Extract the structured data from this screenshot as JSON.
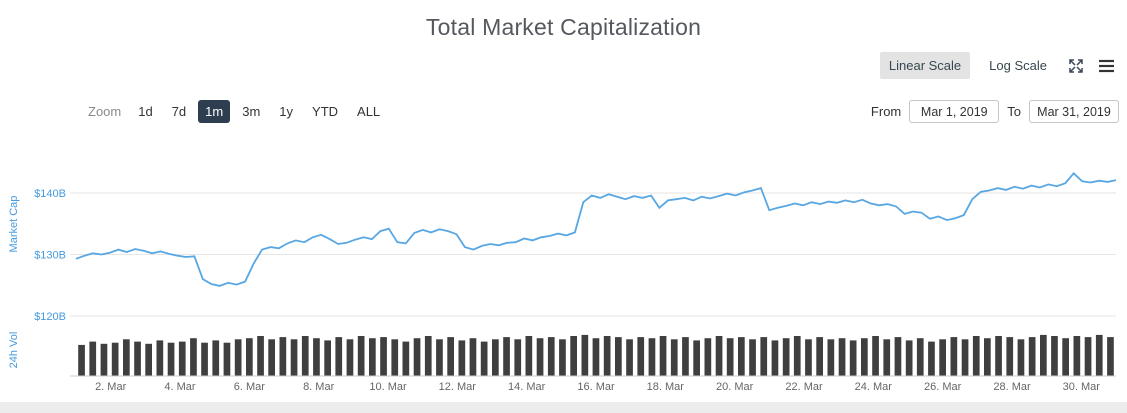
{
  "title": "Total Market Capitalization",
  "scale_toggle": {
    "linear": "Linear Scale",
    "log": "Log Scale",
    "selected": "linear"
  },
  "icons": {
    "fullscreen": "expand-arrows",
    "menu": "hamburger-menu"
  },
  "zoom": {
    "label": "Zoom",
    "ranges": [
      {
        "label": "1d",
        "selected": false
      },
      {
        "label": "7d",
        "selected": false
      },
      {
        "label": "1m",
        "selected": true
      },
      {
        "label": "3m",
        "selected": false
      },
      {
        "label": "1y",
        "selected": false
      },
      {
        "label": "YTD",
        "selected": false
      },
      {
        "label": "ALL",
        "selected": false
      }
    ]
  },
  "range_inputs": {
    "from_label": "From",
    "from_value": "Mar 1, 2019",
    "to_label": "To",
    "to_value": "Mar 31, 2019"
  },
  "colors": {
    "line": "#58a7e3",
    "axis_blue": "#459be0",
    "volume_bar": "#3f3f3f",
    "selected_button_bg": "#2d3e50",
    "grid": "#e6e6e6",
    "tick_text": "#666666"
  },
  "chart_data": {
    "type": "line",
    "title": "Total Market Capitalization",
    "x_range": "Mar 1, 2019 to Mar 31, 2019 (uniform spacing, 4 samples per day)",
    "x_tick_labels": [
      "2. Mar",
      "4. Mar",
      "6. Mar",
      "8. Mar",
      "10. Mar",
      "12. Mar",
      "14. Mar",
      "16. Mar",
      "18. Mar",
      "20. Mar",
      "22. Mar",
      "24. Mar",
      "26. Mar",
      "28. Mar",
      "30. Mar"
    ],
    "x_tick_days": [
      2,
      4,
      6,
      8,
      10,
      12,
      14,
      16,
      18,
      20,
      22,
      24,
      26,
      28,
      30
    ],
    "main_panel": {
      "ylabel": "Market Cap",
      "ylim": [
        120,
        148
      ],
      "yticks": [
        {
          "value": 120,
          "label": "$120B"
        },
        {
          "value": 130,
          "label": "$130B"
        },
        {
          "value": 140,
          "label": "$140B"
        }
      ],
      "series": {
        "name": "Market Cap ($B)",
        "values": [
          129.3,
          129.8,
          130.2,
          130.0,
          130.3,
          130.8,
          130.4,
          130.9,
          130.6,
          130.2,
          130.5,
          130.1,
          129.8,
          129.6,
          129.7,
          126.0,
          125.2,
          124.9,
          125.4,
          125.1,
          125.6,
          128.5,
          130.8,
          131.2,
          131.0,
          131.8,
          132.3,
          132.0,
          132.8,
          133.2,
          132.5,
          131.7,
          131.9,
          132.4,
          132.8,
          132.5,
          133.8,
          134.2,
          132.0,
          131.8,
          133.5,
          134.0,
          133.6,
          134.1,
          133.8,
          133.3,
          131.2,
          130.8,
          131.4,
          131.7,
          131.5,
          131.9,
          132.0,
          132.6,
          132.3,
          132.8,
          133.0,
          133.4,
          133.1,
          133.6,
          138.5,
          139.6,
          139.2,
          139.8,
          139.4,
          139.0,
          139.5,
          139.2,
          139.6,
          137.6,
          138.8,
          139.0,
          139.2,
          138.8,
          139.4,
          139.1,
          139.5,
          139.9,
          139.6,
          140.1,
          140.4,
          140.8,
          137.2,
          137.6,
          137.9,
          138.3,
          138.0,
          138.5,
          138.2,
          138.6,
          138.4,
          138.8,
          138.5,
          138.9,
          138.3,
          138.0,
          138.2,
          137.8,
          136.6,
          137.0,
          136.8,
          135.8,
          136.2,
          135.6,
          135.9,
          136.4,
          139.0,
          140.2,
          140.4,
          140.8,
          140.5,
          141.0,
          140.7,
          141.2,
          140.9,
          141.4,
          141.1,
          141.6,
          143.2,
          141.9,
          141.7,
          142.0,
          141.8,
          142.1
        ]
      }
    },
    "volume_panel": {
      "ylabel": "24h Vol",
      "ylim": [
        0,
        45
      ],
      "unit": "$B (3 samples per day)",
      "values": [
        28,
        31,
        29,
        30,
        33,
        31,
        29,
        32,
        30,
        31,
        34,
        30,
        32,
        30,
        33,
        34,
        36,
        33,
        35,
        33,
        36,
        34,
        32,
        35,
        33,
        36,
        34,
        35,
        33,
        31,
        34,
        36,
        33,
        35,
        32,
        34,
        31,
        33,
        35,
        33,
        36,
        34,
        35,
        33,
        36,
        37,
        34,
        36,
        35,
        33,
        35,
        34,
        36,
        33,
        35,
        32,
        34,
        36,
        34,
        35,
        33,
        35,
        32,
        34,
        36,
        33,
        35,
        33,
        34,
        32,
        34,
        36,
        33,
        35,
        32,
        34,
        31,
        33,
        35,
        33,
        36,
        34,
        36,
        35,
        33,
        35,
        37,
        36,
        34,
        36,
        35,
        37,
        35
      ]
    }
  }
}
